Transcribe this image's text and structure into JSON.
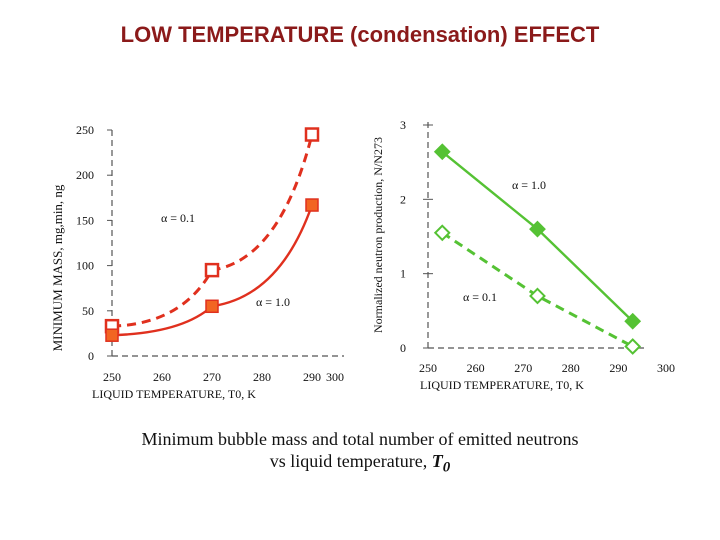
{
  "title": "LOW TEMPERATURE (condensation) EFFECT",
  "caption": {
    "line1": "Minimum bubble mass and total number of emitted neutrons",
    "line2_prefix": "vs liquid temperature, ",
    "line2_symbol": "T",
    "line2_subscript": "0"
  },
  "colors": {
    "red": "#e0301e",
    "orange_fill": "#f26522",
    "green": "#55c234",
    "title": "#8b1a1a"
  },
  "chart_data": [
    {
      "type": "scatter",
      "title": "",
      "xlabel": "LIQUID TEMPERATURE, T0, K",
      "ylabel": "MINIMUM MASS, mg,min, ng",
      "xlim": [
        250,
        300
      ],
      "ylim": [
        0,
        250
      ],
      "xticks": [
        250,
        260,
        270,
        280,
        290,
        300
      ],
      "yticks": [
        0,
        50,
        100,
        150,
        200,
        250
      ],
      "series": [
        {
          "name": "α = 0.1",
          "style": "dashed",
          "marker": "open-square",
          "x": [
            250,
            270,
            290
          ],
          "y": [
            33,
            95,
            245
          ]
        },
        {
          "name": "α = 1.0",
          "style": "solid",
          "marker": "filled-square",
          "x": [
            250,
            270,
            290
          ],
          "y": [
            23,
            55,
            167
          ]
        }
      ],
      "annotations": [
        {
          "text": "α = 0.1",
          "x": 266,
          "y": 150
        },
        {
          "text": "α = 1.0",
          "x": 280,
          "y": 60
        }
      ]
    },
    {
      "type": "line",
      "title": "",
      "xlabel": "LIQUID TEMPERATURE, T0, K",
      "ylabel": "Normalized neutron production, N/N273",
      "xlim": [
        250,
        300
      ],
      "ylim": [
        0,
        3
      ],
      "xticks": [
        250,
        260,
        270,
        280,
        290,
        300
      ],
      "yticks": [
        0,
        1,
        2,
        3
      ],
      "series": [
        {
          "name": "α = 1.0",
          "style": "solid",
          "marker": "filled-diamond",
          "x": [
            253,
            273,
            293
          ],
          "y": [
            2.64,
            1.6,
            0.36
          ]
        },
        {
          "name": "α = 0.1",
          "style": "dashed",
          "marker": "open-diamond",
          "x": [
            253,
            273,
            293
          ],
          "y": [
            1.55,
            0.7,
            0.02
          ]
        }
      ],
      "annotations": [
        {
          "text": "α = 1.0",
          "x": 287,
          "y": 2.2
        },
        {
          "text": "α = 0.1",
          "x": 278,
          "y": 0.7
        }
      ]
    }
  ]
}
